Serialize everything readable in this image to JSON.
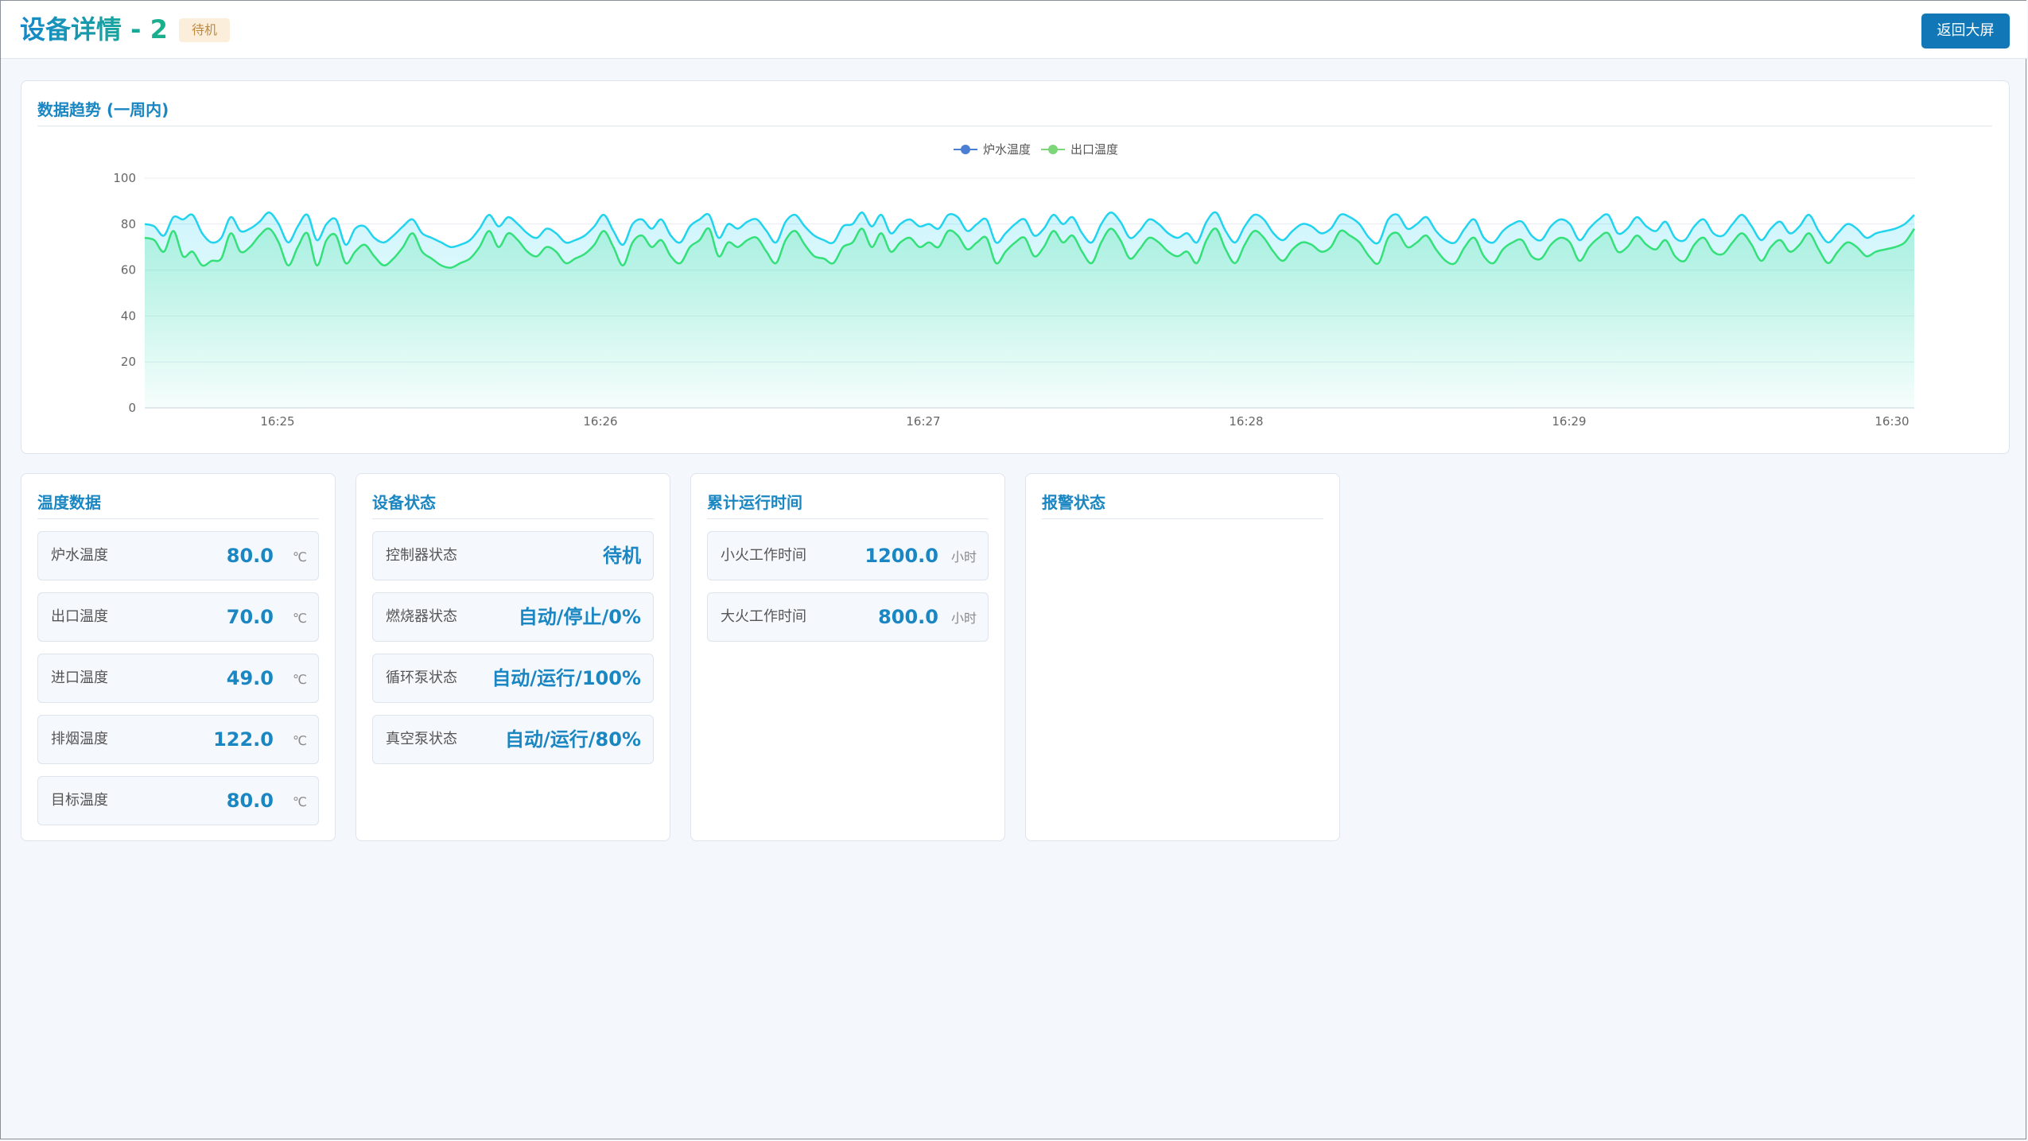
{
  "header": {
    "title": "设备详情 - 2",
    "status": "待机",
    "back_label": "返回大屏"
  },
  "colors": {
    "accent": "#1277b6",
    "title": "#1a86c2",
    "series_boiler": "#22d3ee",
    "series_outlet": "#34e07a",
    "badge_bg": "#fbefdc",
    "badge_text": "#c08a3e"
  },
  "chart_data": {
    "type": "area",
    "title": "数据趋势 (一周内)",
    "xlabel": "",
    "ylabel": "",
    "ylim": [
      0,
      100
    ],
    "yticks": [
      0,
      20,
      40,
      60,
      80,
      100
    ],
    "xticks": [
      "16:25",
      "16:26",
      "16:27",
      "16:28",
      "16:29",
      "16:30"
    ],
    "grid": true,
    "legend": "top-center",
    "series": [
      {
        "name": "炉水温度",
        "color": "#22d3ee",
        "values": [
          80,
          79,
          75,
          83,
          82,
          84,
          76,
          72,
          74,
          83,
          77,
          78,
          81,
          85,
          80,
          72,
          79,
          84,
          73,
          80,
          82,
          71,
          78,
          79,
          74,
          72,
          75,
          79,
          82,
          76,
          74,
          72,
          70,
          71,
          73,
          78,
          84,
          79,
          83,
          80,
          76,
          74,
          78,
          76,
          72,
          73,
          75,
          79,
          84,
          77,
          71,
          80,
          82,
          78,
          82,
          75,
          72,
          79,
          82,
          84,
          74,
          80,
          78,
          81,
          82,
          77,
          72,
          81,
          84,
          79,
          75,
          73,
          72,
          79,
          80,
          85,
          79,
          84,
          76,
          80,
          82,
          79,
          80,
          78,
          84,
          83,
          77,
          80,
          82,
          72,
          76,
          80,
          82,
          75,
          78,
          84,
          80,
          83,
          76,
          72,
          80,
          85,
          81,
          74,
          77,
          82,
          80,
          76,
          74,
          76,
          72,
          81,
          85,
          77,
          72,
          79,
          84,
          82,
          76,
          73,
          77,
          80,
          79,
          76,
          78,
          84,
          83,
          80,
          74,
          72,
          82,
          84,
          78,
          80,
          83,
          77,
          73,
          72,
          78,
          82,
          74,
          72,
          77,
          80,
          81,
          75,
          73,
          79,
          82,
          80,
          73,
          78,
          82,
          84,
          76,
          78,
          83,
          79,
          77,
          81,
          74,
          73,
          79,
          82,
          76,
          75,
          80,
          84,
          79,
          73,
          78,
          81,
          76,
          79,
          84,
          77,
          72,
          76,
          80,
          78,
          74,
          76,
          77,
          78,
          80,
          84
        ],
        "fill": true
      },
      {
        "name": "出口温度",
        "color": "#34e07a",
        "values": [
          74,
          73,
          68,
          77,
          66,
          68,
          62,
          64,
          65,
          76,
          68,
          70,
          75,
          78,
          72,
          62,
          70,
          76,
          62,
          73,
          75,
          63,
          68,
          71,
          66,
          62,
          65,
          70,
          76,
          68,
          65,
          62,
          61,
          63,
          65,
          70,
          77,
          70,
          76,
          73,
          68,
          66,
          70,
          68,
          63,
          65,
          67,
          71,
          77,
          70,
          62,
          72,
          75,
          70,
          73,
          66,
          63,
          70,
          73,
          78,
          66,
          72,
          70,
          73,
          74,
          68,
          63,
          73,
          77,
          71,
          66,
          65,
          63,
          70,
          72,
          78,
          70,
          76,
          68,
          72,
          74,
          70,
          72,
          70,
          77,
          75,
          69,
          72,
          74,
          63,
          68,
          72,
          74,
          66,
          70,
          77,
          72,
          75,
          68,
          63,
          72,
          78,
          73,
          65,
          69,
          74,
          72,
          68,
          66,
          68,
          63,
          73,
          78,
          69,
          63,
          71,
          77,
          74,
          68,
          64,
          69,
          72,
          71,
          68,
          70,
          77,
          75,
          72,
          66,
          63,
          74,
          76,
          70,
          72,
          75,
          69,
          64,
          63,
          70,
          74,
          66,
          63,
          69,
          72,
          73,
          66,
          65,
          71,
          74,
          72,
          64,
          70,
          74,
          76,
          68,
          70,
          75,
          71,
          69,
          73,
          66,
          64,
          71,
          74,
          68,
          67,
          72,
          76,
          71,
          64,
          70,
          73,
          68,
          71,
          76,
          69,
          63,
          68,
          72,
          70,
          66,
          68,
          69,
          70,
          72,
          78
        ],
        "fill": true
      }
    ]
  },
  "panels": {
    "temperature": {
      "title": "温度数据",
      "unit": "℃",
      "rows": [
        {
          "label": "炉水温度",
          "value": "80.0"
        },
        {
          "label": "出口温度",
          "value": "70.0"
        },
        {
          "label": "进口温度",
          "value": "49.0"
        },
        {
          "label": "排烟温度",
          "value": "122.0"
        },
        {
          "label": "目标温度",
          "value": "80.0"
        }
      ]
    },
    "device": {
      "title": "设备状态",
      "rows": [
        {
          "label": "控制器状态",
          "value": "待机"
        },
        {
          "label": "燃烧器状态",
          "value": "自动/停止/0%"
        },
        {
          "label": "循环泵状态",
          "value": "自动/运行/100%"
        },
        {
          "label": "真空泵状态",
          "value": "自动/运行/80%"
        }
      ]
    },
    "runtime": {
      "title": "累计运行时间",
      "unit": "小时",
      "rows": [
        {
          "label": "小火工作时间",
          "value": "1200.0"
        },
        {
          "label": "大火工作时间",
          "value": "800.0"
        }
      ]
    },
    "alarm": {
      "title": "报警状态"
    }
  }
}
